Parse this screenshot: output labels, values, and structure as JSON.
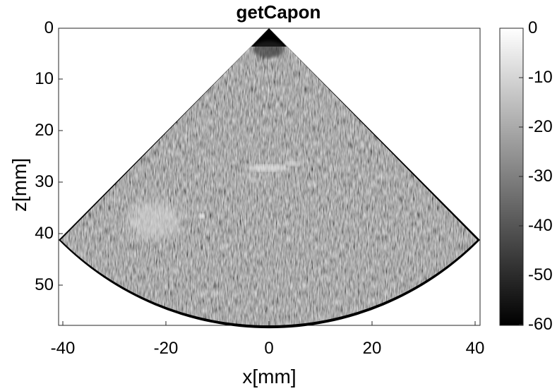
{
  "plot": {
    "title": "getCapon",
    "xlabel": "x[mm]",
    "ylabel": "z[mm]",
    "x_ticks": [
      "-40",
      "-20",
      "0",
      "20",
      "40"
    ],
    "y_ticks": [
      "0",
      "10",
      "20",
      "30",
      "40",
      "50"
    ],
    "x_range": [
      -41,
      41
    ],
    "y_range": [
      0,
      58
    ],
    "colormap": "gray"
  },
  "colorbar": {
    "ticks": [
      "0",
      "-10",
      "-20",
      "-30",
      "-40",
      "-50",
      "-60"
    ],
    "range": [
      -60,
      0
    ]
  },
  "image": {
    "description_type": "ultrasound sector scan",
    "sector_apex_depth": 0,
    "sector_max_depth": 55,
    "sector_half_angle_deg": 45
  }
}
